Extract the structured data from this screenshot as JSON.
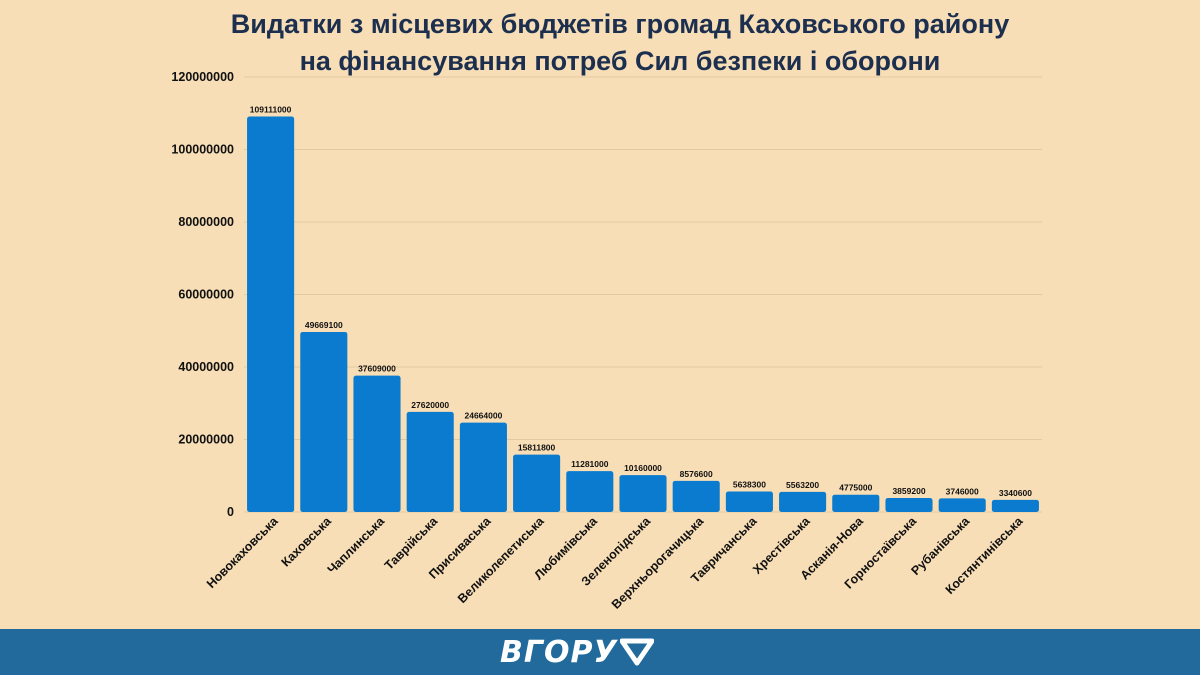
{
  "chart_data": {
    "type": "bar",
    "title": [
      "Видатки з місцевих бюджетів громад Каховського району",
      "на фінансування потреб Сил безпеки і оборони"
    ],
    "categories": [
      "Новокаховська",
      "Каховська",
      "Чаплинська",
      "Таврійська",
      "Присиваська",
      "Великолепетиська",
      "Любимівська",
      "Зеленопідська",
      "Верхньорогачицька",
      "Тавричанська",
      "Хрестівська",
      "Асканія-Нова",
      "Горностаївська",
      "Рубанівська",
      "Костянтинівська"
    ],
    "values": [
      109111000,
      49669100,
      37609000,
      27620000,
      24664000,
      15811800,
      11281000,
      10160000,
      8576600,
      5638300,
      5563200,
      4775000,
      3859200,
      3746000,
      3340600
    ],
    "ylim": [
      0,
      120000000
    ],
    "yticks": [
      0,
      20000000,
      40000000,
      60000000,
      80000000,
      100000000,
      120000000
    ],
    "ytick_labels": [
      "0",
      "20000000",
      "40000000",
      "60000000",
      "80000000",
      "100000000",
      "120000000"
    ],
    "grid": true,
    "bar_color": "#0a7bcf"
  },
  "footer": {
    "logo_text": "ВГОРУ",
    "logo_icon": "arrow-up-chevron-icon",
    "background_color": "#216a9b"
  }
}
